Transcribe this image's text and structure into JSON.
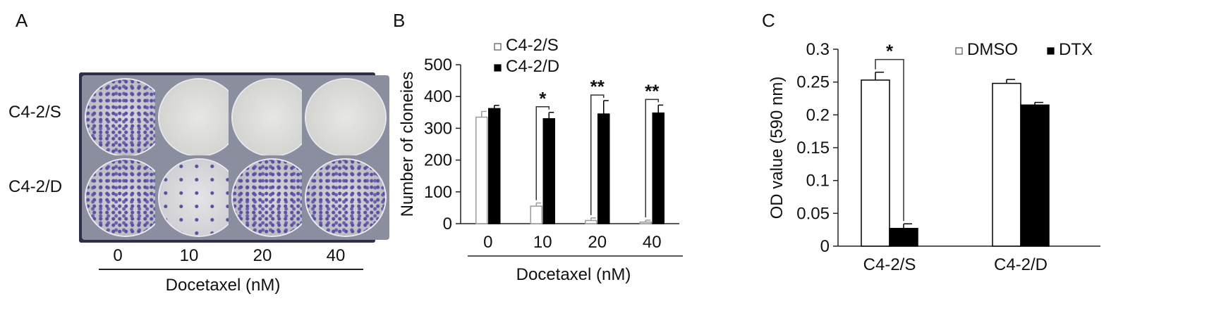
{
  "panel_a": {
    "letter": "A",
    "rows": [
      "C4-2/S",
      "C4-2/D"
    ],
    "columns": [
      "0",
      "10",
      "20",
      "40"
    ],
    "xlabel": "Docetaxel (nM)",
    "wells": [
      [
        "dense",
        "empty",
        "empty",
        "empty"
      ],
      [
        "dense",
        "sparse",
        "dense",
        "dense"
      ]
    ]
  },
  "panel_b": {
    "letter": "B"
  },
  "panel_c": {
    "letter": "C"
  },
  "colors": {
    "white_bar": "#ffffff",
    "black_bar": "#000000",
    "outline": "#9a9a9a",
    "axis": "#222222"
  },
  "chart_data": [
    {
      "type": "bar",
      "panel": "B",
      "categories": [
        "0",
        "10",
        "20",
        "40"
      ],
      "series": [
        {
          "name": "C4-2/S",
          "values": [
            335,
            55,
            10,
            5
          ],
          "errors": [
            18,
            10,
            8,
            6
          ],
          "fill": "white"
        },
        {
          "name": "C4-2/D",
          "values": [
            362,
            330,
            345,
            348
          ],
          "errors": [
            10,
            20,
            42,
            25
          ],
          "fill": "black"
        }
      ],
      "ylabel": "Number of cloneies",
      "xlabel": "Docetaxel (nM)",
      "ylim": [
        0,
        500
      ],
      "yticks": [
        "0",
        "100",
        "200",
        "300",
        "400",
        "500"
      ],
      "legend": "top-left",
      "annotations": [
        {
          "category": "10",
          "text": "*"
        },
        {
          "category": "20",
          "text": "**"
        },
        {
          "category": "40",
          "text": "**"
        }
      ]
    },
    {
      "type": "bar",
      "panel": "C",
      "categories": [
        "C4-2/S",
        "C4-2/D"
      ],
      "series": [
        {
          "name": "DMSO",
          "values": [
            0.253,
            0.248
          ],
          "errors": [
            0.012,
            0.006
          ],
          "fill": "white"
        },
        {
          "name": "DTX",
          "values": [
            0.027,
            0.215
          ],
          "errors": [
            0.007,
            0.004
          ],
          "fill": "black"
        }
      ],
      "ylabel": "OD value (590 nm)",
      "ylim": [
        0,
        0.3
      ],
      "yticks": [
        "0",
        "0.05",
        "0.1",
        "0.15",
        "0.2",
        "0.25",
        "0.3"
      ],
      "legend": "top-right",
      "annotations": [
        {
          "category": "C4-2/S",
          "text": "*"
        }
      ]
    }
  ]
}
